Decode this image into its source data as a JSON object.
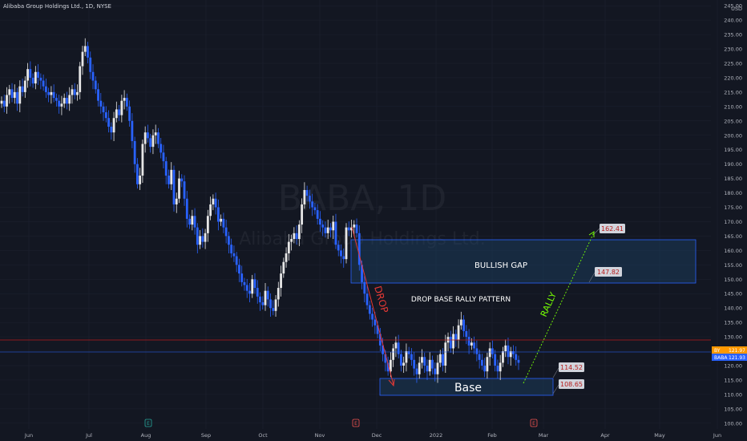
{
  "header": {
    "symbol_title": "Alibaba Group Holdings Ltd., 1D, NYSE"
  },
  "watermark": {
    "ticker": "BABA, 1D",
    "company": "Alibaba Group Holdings Ltd."
  },
  "colors": {
    "background": "#131722",
    "up": "#e6e6e6",
    "down": "#2962ff",
    "grid": "#1e2230",
    "zone_fill": "#1f4e79",
    "zone_border": "#2962ff",
    "drop_arrow": "#e53935",
    "rally_line": "#76ff03",
    "callout_bg": "#d1d4dc",
    "callout_text": "#b71c1c",
    "price_badge": "#2962ff",
    "price_badge_orange": "#ff9800",
    "red_line": "#b71c1c"
  },
  "price_axis": {
    "currency": "USD",
    "labels": [
      "245.00",
      "240.00",
      "235.00",
      "230.00",
      "225.00",
      "220.00",
      "215.00",
      "210.00",
      "205.00",
      "200.00",
      "195.00",
      "190.00",
      "185.00",
      "180.00",
      "175.00",
      "170.00",
      "165.00",
      "160.00",
      "155.00",
      "150.00",
      "145.00",
      "140.00",
      "135.00",
      "130.00",
      "125.00",
      "120.00",
      "115.00",
      "110.00",
      "105.00",
      "100.00"
    ],
    "badges": [
      {
        "text": "BABA",
        "value": "121.93"
      },
      {
        "text": "BY",
        "value": "121.97"
      }
    ]
  },
  "time_axis": {
    "labels": [
      "Jun",
      "Jul",
      "Aug",
      "Sep",
      "Oct",
      "Nov",
      "Dec",
      "2022",
      "Feb",
      "Mar",
      "Apr",
      "May",
      "Jun"
    ]
  },
  "events": [
    {
      "label": "E",
      "kind": "earnings"
    },
    {
      "label": "E",
      "kind": "earnings"
    },
    {
      "label": "E",
      "kind": "earnings"
    }
  ],
  "annotations": {
    "bullish_gap": "BULLISH GAP",
    "pattern": "DROP BASE RALLY PATTERN",
    "drop": "DROP",
    "rally": "RALLY",
    "base": "Base",
    "callouts": [
      "162.41",
      "147.82",
      "114.52",
      "108.65"
    ]
  },
  "chart_data": {
    "type": "candlestick",
    "title": "Alibaba Group Holdings Ltd., 1D, NYSE",
    "ylim": [
      98,
      247
    ],
    "y_scale": "linear",
    "grid": true,
    "series": [
      {
        "name": "BABA",
        "close": [
          212,
          210,
          214,
          216,
          213,
          215,
          211,
          217,
          215,
          219,
          223,
          220,
          218,
          222,
          220,
          219,
          217,
          215,
          214,
          215,
          213,
          212,
          210,
          211,
          213,
          211,
          214,
          216,
          214,
          215,
          224,
          229,
          231,
          227,
          222,
          219,
          216,
          212,
          210,
          208,
          206,
          203,
          201,
          206,
          209,
          207,
          212,
          213,
          210,
          205,
          198,
          190,
          183,
          186,
          197,
          201,
          199,
          196,
          200,
          201,
          197,
          194,
          191,
          186,
          183,
          188,
          176,
          178,
          185,
          184,
          178,
          171,
          169,
          172,
          168,
          162,
          165,
          163,
          166,
          172,
          176,
          178,
          175,
          170,
          171,
          168,
          165,
          162,
          159,
          158,
          155,
          152,
          149,
          148,
          146,
          145,
          150,
          147,
          144,
          142,
          141,
          146,
          143,
          140,
          139,
          143,
          147,
          152,
          156,
          159,
          163,
          164,
          166,
          164,
          169,
          176,
          181,
          179,
          177,
          175,
          174,
          171,
          169,
          168,
          166,
          168,
          167,
          170,
          162,
          160,
          158,
          157,
          168,
          167,
          168,
          169,
          166,
          155,
          149,
          145,
          141,
          138,
          136,
          134,
          131,
          127,
          124,
          121,
          118,
          122,
          126,
          128,
          124,
          120,
          121,
          125,
          124,
          122,
          119,
          117,
          121,
          123,
          120,
          118,
          122,
          119,
          117,
          121,
          124,
          120,
          128,
          130,
          126,
          131,
          129,
          134,
          136,
          132,
          130,
          127,
          128,
          126,
          124,
          122,
          120,
          118,
          123,
          126,
          124,
          120,
          118,
          121,
          125,
          127,
          123,
          125,
          124,
          122,
          121
        ],
        "open": [
          211,
          212,
          210,
          214,
          216,
          213,
          215,
          211,
          217,
          215,
          219,
          223,
          220,
          218,
          222,
          220,
          219,
          217,
          215,
          214,
          215,
          213,
          212,
          210,
          211,
          213,
          211,
          214,
          216,
          214,
          215,
          224,
          229,
          231,
          227,
          222,
          219,
          216,
          212,
          210,
          208,
          206,
          203,
          201,
          206,
          209,
          207,
          212,
          213,
          210,
          205,
          198,
          190,
          183,
          186,
          197,
          201,
          199,
          196,
          200,
          201,
          197,
          194,
          191,
          186,
          183,
          188,
          176,
          178,
          185,
          184,
          178,
          171,
          169,
          172,
          168,
          162,
          165,
          163,
          166,
          172,
          176,
          178,
          175,
          170,
          171,
          168,
          165,
          162,
          159,
          158,
          155,
          152,
          149,
          148,
          146,
          145,
          150,
          147,
          144,
          142,
          141,
          146,
          143,
          140,
          139,
          143,
          147,
          152,
          156,
          159,
          163,
          164,
          166,
          164,
          169,
          176,
          181,
          179,
          177,
          175,
          174,
          171,
          169,
          168,
          166,
          168,
          167,
          170,
          162,
          160,
          158,
          157,
          168,
          167,
          168,
          169,
          166,
          155,
          149,
          145,
          141,
          138,
          136,
          134,
          131,
          127,
          124,
          121,
          118,
          122,
          126,
          128,
          124,
          120,
          121,
          125,
          124,
          122,
          119,
          117,
          121,
          123,
          120,
          118,
          122,
          119,
          117,
          121,
          124,
          120,
          128,
          130,
          126,
          131,
          129,
          134,
          136,
          132,
          130,
          127,
          128,
          126,
          124,
          122,
          120,
          118,
          123,
          126,
          124,
          120,
          118,
          121,
          125,
          127,
          123,
          125,
          124,
          122
        ]
      }
    ],
    "zones": [
      {
        "label": "BULLISH GAP",
        "y_low": 148,
        "y_high": 162.41
      },
      {
        "label": "Base",
        "y_low": 108.65,
        "y_high": 114.52
      }
    ],
    "levels": [
      162.41,
      147.82,
      114.52,
      108.65
    ]
  }
}
